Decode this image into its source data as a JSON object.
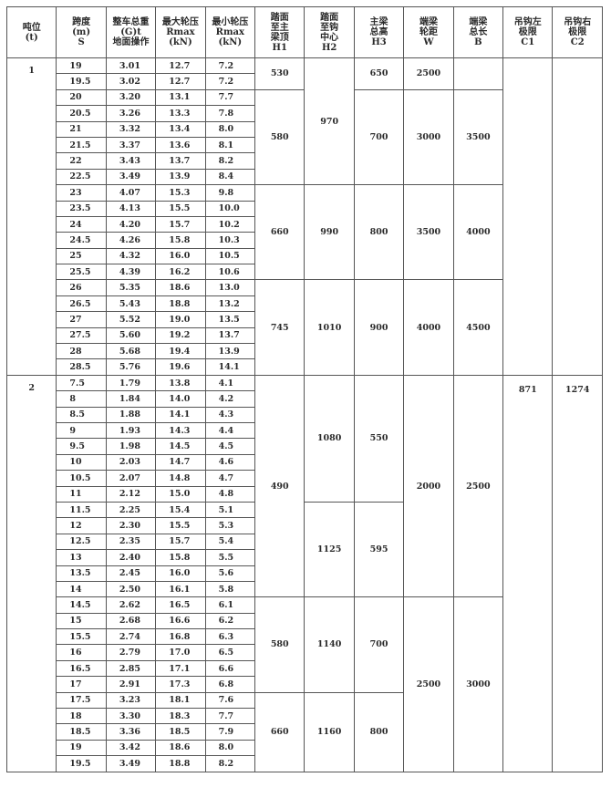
{
  "headers": [
    [
      "吨位",
      "(t)"
    ],
    [
      "跨度",
      "(m)",
      "S"
    ],
    [
      "整车总重",
      "(G)t",
      "地面操作"
    ],
    [
      "最大轮压",
      "Rmax",
      "(kN)"
    ],
    [
      "最小轮压",
      "Rmax",
      "(kN)"
    ],
    [
      "踏面",
      "至主",
      "梁顶",
      "H1"
    ],
    [
      "踏面",
      "至钩",
      "中心",
      "H2"
    ],
    [
      "主梁",
      "总高",
      "H3"
    ],
    [
      "端梁",
      "轮距",
      "W"
    ],
    [
      "端梁",
      "总长",
      "B"
    ],
    [
      "吊钩左",
      "极限",
      "C1"
    ],
    [
      "吊钩右",
      "极限",
      "C2"
    ]
  ],
  "merged_columns": [
    "H1",
    "H2",
    "H3",
    "W",
    "B",
    "C1",
    "C2"
  ],
  "groups": [
    {
      "tonnage": "1",
      "rows": [
        [
          "19",
          "3.01",
          "12.7",
          "7.2"
        ],
        [
          "19.5",
          "3.02",
          "12.7",
          "7.2"
        ],
        [
          "20",
          "3.20",
          "13.1",
          "7.7"
        ],
        [
          "20.5",
          "3.26",
          "13.3",
          "7.8"
        ],
        [
          "21",
          "3.32",
          "13.4",
          "8.0"
        ],
        [
          "21.5",
          "3.37",
          "13.6",
          "8.1"
        ],
        [
          "22",
          "3.43",
          "13.7",
          "8.2"
        ],
        [
          "22.5",
          "3.49",
          "13.9",
          "8.4"
        ],
        [
          "23",
          "4.07",
          "15.3",
          "9.8"
        ],
        [
          "23.5",
          "4.13",
          "15.5",
          "10.0"
        ],
        [
          "24",
          "4.20",
          "15.7",
          "10.2"
        ],
        [
          "24.5",
          "4.26",
          "15.8",
          "10.3"
        ],
        [
          "25",
          "4.32",
          "16.0",
          "10.5"
        ],
        [
          "25.5",
          "4.39",
          "16.2",
          "10.6"
        ],
        [
          "26",
          "5.35",
          "18.6",
          "13.0"
        ],
        [
          "26.5",
          "5.43",
          "18.8",
          "13.2"
        ],
        [
          "27",
          "5.52",
          "19.0",
          "13.5"
        ],
        [
          "27.5",
          "5.60",
          "19.2",
          "13.7"
        ],
        [
          "28",
          "5.68",
          "19.4",
          "13.9"
        ],
        [
          "28.5",
          "5.76",
          "19.6",
          "14.1"
        ]
      ],
      "merged": {
        "H1": [
          {
            "v": "530",
            "n": 2
          },
          {
            "v": "580",
            "n": 6
          },
          {
            "v": "660",
            "n": 6
          },
          {
            "v": "745",
            "n": 6
          }
        ],
        "H2": [
          {
            "v": "970",
            "n": 8
          },
          {
            "v": "990",
            "n": 6
          },
          {
            "v": "1010",
            "n": 6
          }
        ],
        "H3": [
          {
            "v": "650",
            "n": 2
          },
          {
            "v": "700",
            "n": 6
          },
          {
            "v": "800",
            "n": 6
          },
          {
            "v": "900",
            "n": 6
          }
        ],
        "W": [
          {
            "v": "2500",
            "n": 2
          },
          {
            "v": "3000",
            "n": 6
          },
          {
            "v": "3500",
            "n": 6
          },
          {
            "v": "4000",
            "n": 6
          }
        ],
        "B": [
          {
            "v": "",
            "n": 2
          },
          {
            "v": "3500",
            "n": 6
          },
          {
            "v": "4000",
            "n": 6
          },
          {
            "v": "4500",
            "n": 6
          }
        ],
        "C1": [
          {
            "v": "",
            "n": 20
          }
        ],
        "C2": [
          {
            "v": "",
            "n": 20
          }
        ]
      }
    },
    {
      "tonnage": "2",
      "rows": [
        [
          "7.5",
          "1.79",
          "13.8",
          "4.1"
        ],
        [
          "8",
          "1.84",
          "14.0",
          "4.2"
        ],
        [
          "8.5",
          "1.88",
          "14.1",
          "4.3"
        ],
        [
          "9",
          "1.93",
          "14.3",
          "4.4"
        ],
        [
          "9.5",
          "1.98",
          "14.5",
          "4.5"
        ],
        [
          "10",
          "2.03",
          "14.7",
          "4.6"
        ],
        [
          "10.5",
          "2.07",
          "14.8",
          "4.7"
        ],
        [
          "11",
          "2.12",
          "15.0",
          "4.8"
        ],
        [
          "11.5",
          "2.25",
          "15.4",
          "5.1"
        ],
        [
          "12",
          "2.30",
          "15.5",
          "5.3"
        ],
        [
          "12.5",
          "2.35",
          "15.7",
          "5.4"
        ],
        [
          "13",
          "2.40",
          "15.8",
          "5.5"
        ],
        [
          "13.5",
          "2.45",
          "16.0",
          "5.6"
        ],
        [
          "14",
          "2.50",
          "16.1",
          "5.8"
        ],
        [
          "14.5",
          "2.62",
          "16.5",
          "6.1"
        ],
        [
          "15",
          "2.68",
          "16.6",
          "6.2"
        ],
        [
          "15.5",
          "2.74",
          "16.8",
          "6.3"
        ],
        [
          "16",
          "2.79",
          "17.0",
          "6.5"
        ],
        [
          "16.5",
          "2.85",
          "17.1",
          "6.6"
        ],
        [
          "17",
          "2.91",
          "17.3",
          "6.8"
        ],
        [
          "17.5",
          "3.23",
          "18.1",
          "7.6"
        ],
        [
          "18",
          "3.30",
          "18.3",
          "7.7"
        ],
        [
          "18.5",
          "3.36",
          "18.5",
          "7.9"
        ],
        [
          "19",
          "3.42",
          "18.6",
          "8.0"
        ],
        [
          "19.5",
          "3.49",
          "18.8",
          "8.2"
        ]
      ],
      "merged": {
        "H1": [
          {
            "v": "490",
            "n": 14
          },
          {
            "v": "580",
            "n": 6
          },
          {
            "v": "660",
            "n": 5
          }
        ],
        "H2": [
          {
            "v": "1080",
            "n": 8
          },
          {
            "v": "1125",
            "n": 6
          },
          {
            "v": "1140",
            "n": 6
          },
          {
            "v": "1160",
            "n": 5
          }
        ],
        "H3": [
          {
            "v": "550",
            "n": 8
          },
          {
            "v": "595",
            "n": 6
          },
          {
            "v": "700",
            "n": 6
          },
          {
            "v": "800",
            "n": 5
          }
        ],
        "W": [
          {
            "v": "2000",
            "n": 14
          },
          {
            "v": "2500",
            "n": 11
          }
        ],
        "B": [
          {
            "v": "2500",
            "n": 14
          },
          {
            "v": "3000",
            "n": 11
          }
        ],
        "C1": [
          {
            "v": "871",
            "n": 25
          }
        ],
        "C2": [
          {
            "v": "1274",
            "n": 25
          }
        ]
      }
    }
  ]
}
